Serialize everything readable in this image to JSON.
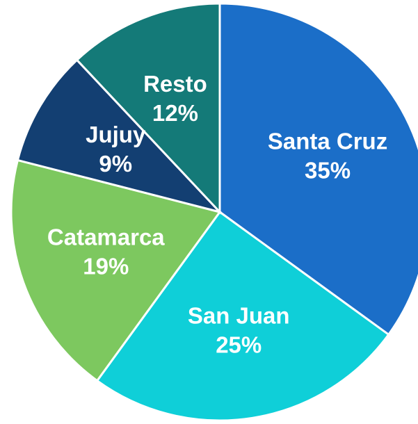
{
  "chart_data": {
    "type": "pie",
    "categories": [
      "Santa Cruz",
      "San Juan",
      "Catamarca",
      "Jujuy",
      "Resto"
    ],
    "values": [
      35,
      25,
      19,
      9,
      12
    ],
    "value_labels": [
      "35%",
      "25%",
      "19%",
      "9%",
      "12%"
    ],
    "colors": [
      "#1b6ec8",
      "#0fcfd8",
      "#7dc85f",
      "#133f72",
      "#147a78"
    ]
  }
}
